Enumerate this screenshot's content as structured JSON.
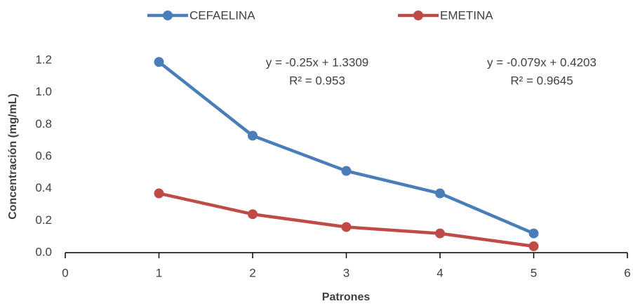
{
  "chart_data": {
    "type": "line",
    "x_label": "Patrones",
    "y_label": "Concentración (mg/mL)",
    "x": [
      1,
      2,
      3,
      4,
      5
    ],
    "series": [
      {
        "name": "CEFAELINA",
        "color": "#4a7ebb",
        "values": [
          1.19,
          0.73,
          0.51,
          0.37,
          0.12
        ]
      },
      {
        "name": "EMETINA",
        "color": "#be4b48",
        "values": [
          0.37,
          0.24,
          0.16,
          0.12,
          0.04
        ]
      }
    ],
    "xlim": [
      0,
      6
    ],
    "xticks": [
      0,
      1,
      2,
      3,
      4,
      5,
      6
    ],
    "ylim": [
      0,
      1.2
    ],
    "yticks": [
      {
        "value": 0,
        "label": "0.0"
      },
      0.2,
      0.4,
      0.6,
      0.8,
      {
        "value": 1,
        "label": "1.0"
      },
      1.2
    ],
    "grid": false,
    "legend": "top",
    "annotations": [
      {
        "lines": [
          "y = -0.25x + 1.3309",
          "R² = 0.953"
        ]
      },
      {
        "lines": [
          "y = -0.079x + 0.4203",
          "R² = 0.9645"
        ]
      }
    ]
  }
}
